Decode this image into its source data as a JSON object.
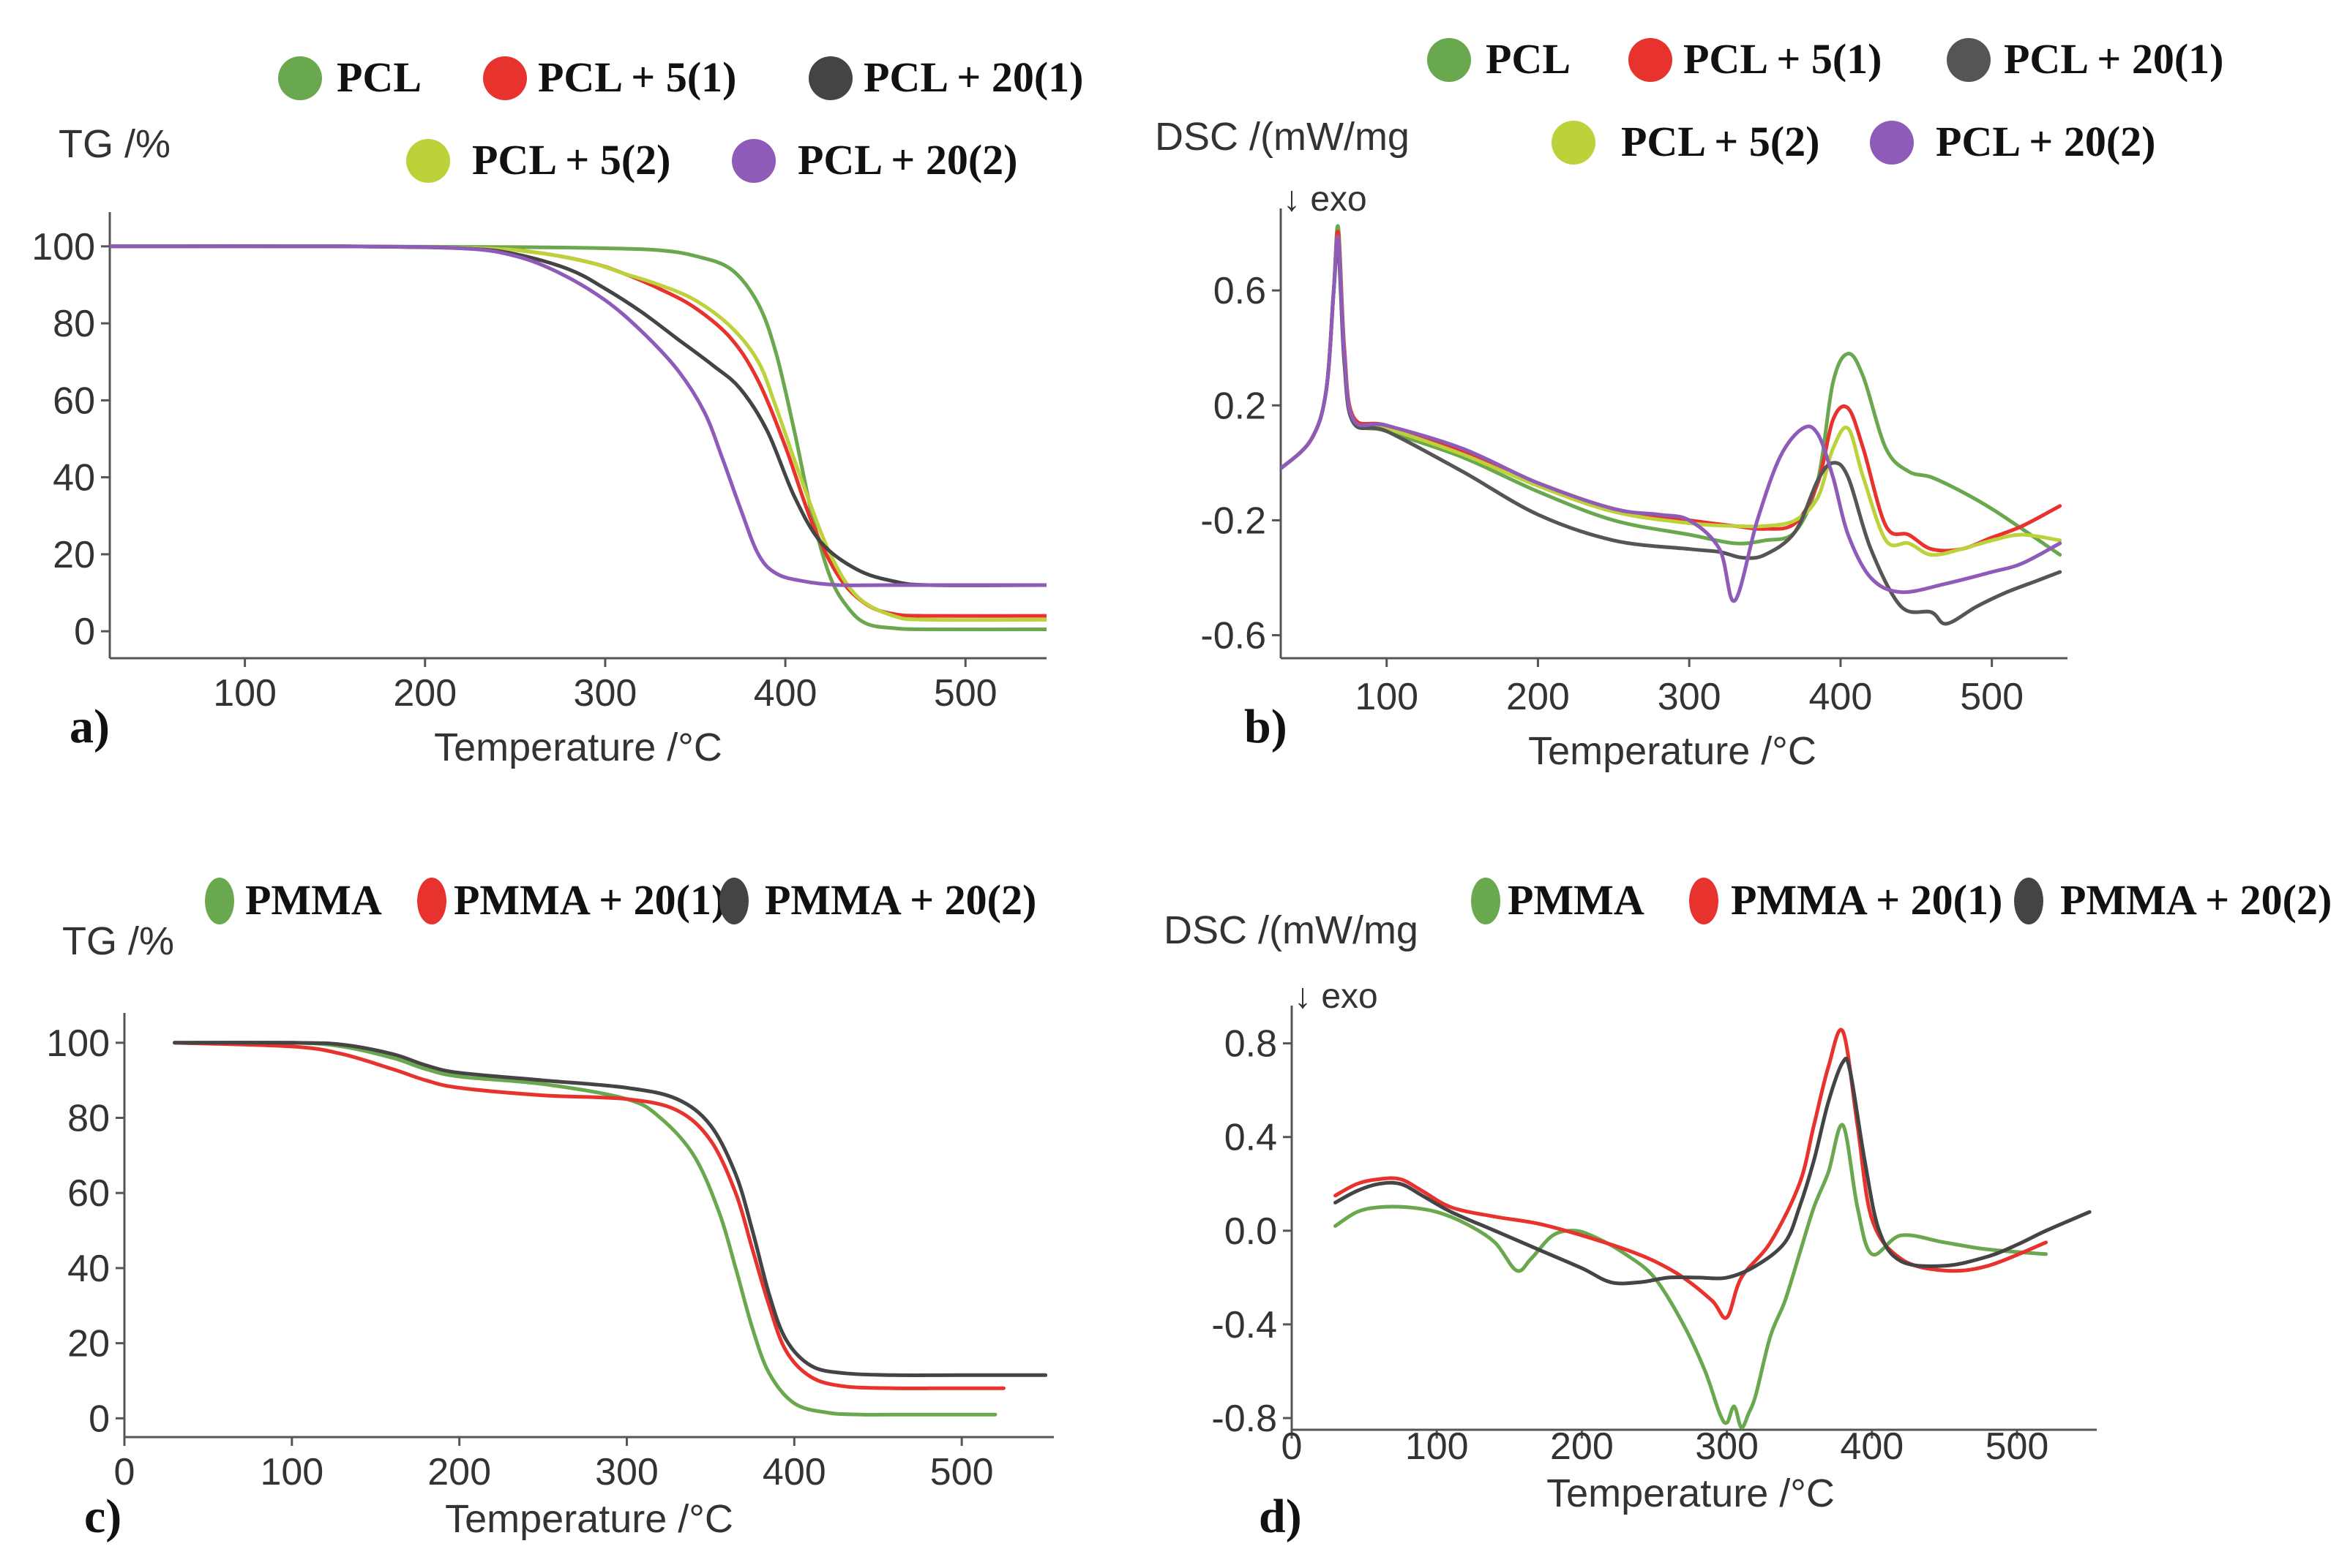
{
  "chart_data": [
    {
      "id": "a",
      "type": "line",
      "panel_label": "a)",
      "ylabel": "TG /%",
      "xlabel": "Temperature /°C",
      "xlim": [
        25,
        545
      ],
      "ylim": [
        -7,
        107
      ],
      "xticks": [
        100,
        200,
        300,
        400,
        500
      ],
      "yticks": [
        0,
        20,
        40,
        60,
        80,
        100
      ],
      "legend_rows": [
        [
          "PCL",
          "PCL + 5(1)",
          "PCL + 20(1)"
        ],
        [
          "PCL + 5(2)",
          "PCL + 20(2)"
        ]
      ],
      "series": [
        {
          "name": "PCL",
          "color": "#6aa84f",
          "x": [
            25,
            150,
            250,
            300,
            330,
            350,
            370,
            385,
            395,
            405,
            415,
            425,
            435,
            445,
            460,
            480,
            545
          ],
          "y": [
            100,
            100,
            99.8,
            99.5,
            99,
            97.5,
            94,
            85,
            72,
            52,
            30,
            14,
            6,
            2,
            0.8,
            0.5,
            0.5
          ]
        },
        {
          "name": "PCL + 5(1)",
          "color": "#e8322e",
          "x": [
            25,
            150,
            230,
            260,
            290,
            310,
            330,
            350,
            370,
            385,
            400,
            415,
            430,
            445,
            460,
            480,
            545
          ],
          "y": [
            100,
            100,
            99.5,
            98.5,
            96,
            93,
            89,
            84,
            76,
            65,
            48,
            28,
            14,
            7,
            4.5,
            4,
            4
          ]
        },
        {
          "name": "PCL + 5(2)",
          "color": "#bcd13a",
          "x": [
            25,
            150,
            230,
            260,
            290,
            310,
            330,
            350,
            370,
            385,
            395,
            410,
            425,
            440,
            460,
            480,
            545
          ],
          "y": [
            100,
            100,
            99.5,
            98.5,
            96,
            93,
            90,
            86,
            79,
            70,
            58,
            38,
            20,
            9,
            4,
            3,
            3
          ]
        },
        {
          "name": "PCL + 20(1)",
          "color": "#444444",
          "x": [
            25,
            150,
            220,
            250,
            280,
            300,
            320,
            340,
            360,
            375,
            390,
            405,
            420,
            440,
            460,
            480,
            545
          ],
          "y": [
            100,
            100,
            99.5,
            98,
            94,
            89,
            83,
            76,
            69,
            63,
            52,
            35,
            23,
            16,
            13,
            12,
            12
          ]
        },
        {
          "name": "PCL + 20(2)",
          "color": "#8e5bb8",
          "x": [
            25,
            150,
            220,
            250,
            275,
            300,
            320,
            340,
            355,
            365,
            375,
            385,
            395,
            410,
            430,
            460,
            545
          ],
          "y": [
            100,
            100,
            99.5,
            97.5,
            93,
            86,
            78,
            68,
            57,
            45,
            32,
            20,
            15,
            13,
            12,
            12,
            12
          ]
        }
      ]
    },
    {
      "id": "b",
      "type": "line",
      "panel_label": "b)",
      "ylabel": "DSC /(mW/mg",
      "annotation": "↓ exo",
      "xlabel": "Temperature /°C",
      "xlim": [
        30,
        550
      ],
      "ylim": [
        -0.68,
        0.86
      ],
      "xticks": [
        100,
        200,
        300,
        400,
        500
      ],
      "yticks": [
        0.6,
        0.2,
        -0.2,
        -0.6
      ],
      "ytick_labels": [
        "0.6",
        "0.2",
        "-0.2",
        "-0.6"
      ],
      "legend_rows": [
        [
          "PCL",
          "PCL + 5(1)",
          "PCL + 20(1)"
        ],
        [
          "PCL + 5(2)",
          "PCL + 20(2)"
        ]
      ],
      "series": [
        {
          "name": "PCL",
          "color": "#6aa84f",
          "x": [
            30,
            50,
            60,
            65,
            68,
            72,
            78,
            100,
            150,
            200,
            250,
            300,
            330,
            350,
            370,
            385,
            395,
            405,
            415,
            430,
            445,
            460,
            480,
            500,
            520,
            545
          ],
          "y": [
            -0.02,
            0.08,
            0.25,
            0.6,
            0.82,
            0.4,
            0.15,
            0.11,
            0.02,
            -0.1,
            -0.2,
            -0.25,
            -0.28,
            -0.27,
            -0.24,
            -0.06,
            0.28,
            0.38,
            0.3,
            0.05,
            -0.03,
            -0.05,
            -0.1,
            -0.16,
            -0.23,
            -0.32
          ]
        },
        {
          "name": "PCL + 5(1)",
          "color": "#e8322e",
          "x": [
            30,
            50,
            60,
            65,
            68,
            72,
            78,
            100,
            150,
            200,
            250,
            300,
            330,
            350,
            370,
            385,
            395,
            405,
            415,
            430,
            445,
            460,
            480,
            500,
            520,
            545
          ],
          "y": [
            -0.02,
            0.08,
            0.25,
            0.6,
            0.8,
            0.4,
            0.16,
            0.13,
            0.04,
            -0.07,
            -0.16,
            -0.2,
            -0.22,
            -0.23,
            -0.21,
            -0.07,
            0.15,
            0.19,
            0.05,
            -0.22,
            -0.25,
            -0.3,
            -0.3,
            -0.26,
            -0.22,
            -0.15
          ]
        },
        {
          "name": "PCL + 5(2)",
          "color": "#bcd13a",
          "x": [
            30,
            50,
            60,
            65,
            68,
            72,
            78,
            100,
            150,
            200,
            250,
            300,
            330,
            350,
            370,
            385,
            395,
            405,
            415,
            430,
            445,
            460,
            480,
            500,
            520,
            545
          ],
          "y": [
            -0.02,
            0.08,
            0.25,
            0.6,
            0.78,
            0.38,
            0.15,
            0.12,
            0.03,
            -0.08,
            -0.17,
            -0.21,
            -0.22,
            -0.22,
            -0.2,
            -0.12,
            0.05,
            0.12,
            -0.05,
            -0.27,
            -0.28,
            -0.32,
            -0.3,
            -0.27,
            -0.25,
            -0.27
          ]
        },
        {
          "name": "PCL + 20(1)",
          "color": "#555555",
          "x": [
            30,
            50,
            60,
            65,
            68,
            72,
            78,
            100,
            150,
            200,
            250,
            300,
            320,
            335,
            350,
            370,
            385,
            395,
            405,
            420,
            440,
            460,
            470,
            490,
            510,
            530,
            545
          ],
          "y": [
            -0.02,
            0.08,
            0.25,
            0.6,
            0.75,
            0.35,
            0.14,
            0.11,
            -0.03,
            -0.18,
            -0.27,
            -0.3,
            -0.31,
            -0.33,
            -0.32,
            -0.24,
            -0.06,
            0,
            -0.05,
            -0.3,
            -0.5,
            -0.52,
            -0.56,
            -0.5,
            -0.45,
            -0.41,
            -0.38
          ]
        },
        {
          "name": "PCL + 20(2)",
          "color": "#8e5bb8",
          "x": [
            30,
            50,
            60,
            65,
            68,
            72,
            78,
            100,
            150,
            200,
            250,
            280,
            300,
            320,
            330,
            345,
            360,
            375,
            385,
            395,
            405,
            420,
            440,
            470,
            500,
            520,
            545
          ],
          "y": [
            -0.02,
            0.08,
            0.25,
            0.6,
            0.78,
            0.38,
            0.15,
            0.13,
            0.05,
            -0.07,
            -0.16,
            -0.18,
            -0.2,
            -0.3,
            -0.48,
            -0.2,
            0.02,
            0.12,
            0.1,
            -0.05,
            -0.25,
            -0.4,
            -0.45,
            -0.42,
            -0.38,
            -0.35,
            -0.28
          ]
        }
      ]
    },
    {
      "id": "c",
      "type": "line",
      "panel_label": "c)",
      "ylabel": "TG /%",
      "xlabel": "Temperature /°C",
      "xlim": [
        0,
        555
      ],
      "ylim": [
        -5,
        106
      ],
      "xticks": [
        0,
        100,
        200,
        300,
        400,
        500
      ],
      "yticks": [
        0,
        20,
        40,
        60,
        80,
        100
      ],
      "legend_rows": [
        [
          "PMMA",
          "PMMA + 20(1)",
          "PMMA + 20(2)"
        ]
      ],
      "series": [
        {
          "name": "PMMA",
          "color": "#6aa84f",
          "x": [
            30,
            100,
            130,
            160,
            180,
            200,
            250,
            300,
            320,
            340,
            355,
            365,
            375,
            385,
            400,
            420,
            440,
            470,
            520
          ],
          "y": [
            100,
            100,
            99,
            96,
            93,
            91,
            89,
            85,
            80,
            70,
            55,
            40,
            24,
            12,
            4,
            1.5,
            1,
            1,
            1
          ]
        },
        {
          "name": "PMMA + 20(1)",
          "color": "#e8322e",
          "x": [
            30,
            100,
            130,
            160,
            180,
            200,
            250,
            300,
            330,
            350,
            365,
            375,
            385,
            395,
            410,
            430,
            460,
            490,
            525
          ],
          "y": [
            100,
            99,
            97,
            93,
            90,
            88,
            86,
            85,
            82,
            74,
            60,
            45,
            30,
            18,
            11,
            8.5,
            8,
            8,
            8
          ]
        },
        {
          "name": "PMMA + 20(2)",
          "color": "#444444",
          "x": [
            30,
            100,
            130,
            160,
            180,
            200,
            250,
            300,
            330,
            350,
            365,
            375,
            385,
            395,
            410,
            430,
            460,
            500,
            550
          ],
          "y": [
            100,
            100,
            99.5,
            97,
            94,
            92,
            90,
            88,
            85,
            78,
            65,
            50,
            33,
            21,
            14,
            12,
            11.5,
            11.5,
            11.5
          ]
        }
      ]
    },
    {
      "id": "d",
      "type": "line",
      "panel_label": "d)",
      "ylabel": "DSC /(mW/mg",
      "annotation": "↓ exo",
      "xlabel": "Temperature /°C",
      "xlim": [
        0,
        555
      ],
      "ylim": [
        -0.85,
        0.93
      ],
      "xticks": [
        0,
        100,
        200,
        300,
        400,
        500
      ],
      "yticks": [
        0.8,
        0.4,
        0.0,
        -0.4,
        -0.8
      ],
      "ytick_labels": [
        "0.8",
        "0.4",
        "0.0",
        "-0.4",
        "-0.8"
      ],
      "legend_rows": [
        [
          "PMMA",
          "PMMA + 20(1)",
          "PMMA + 20(2)"
        ]
      ],
      "series": [
        {
          "name": "PMMA",
          "color": "#6aa84f",
          "x": [
            30,
            45,
            60,
            80,
            100,
            120,
            140,
            155,
            165,
            180,
            195,
            210,
            230,
            250,
            270,
            285,
            295,
            300,
            305,
            310,
            315,
            320,
            330,
            340,
            350,
            360,
            370,
            380,
            390,
            400,
            420,
            450,
            480,
            520
          ],
          "y": [
            0.02,
            0.08,
            0.1,
            0.1,
            0.08,
            0.03,
            -0.05,
            -0.17,
            -0.12,
            -0.02,
            0,
            -0.03,
            -0.1,
            -0.2,
            -0.4,
            -0.6,
            -0.78,
            -0.82,
            -0.75,
            -0.84,
            -0.78,
            -0.7,
            -0.45,
            -0.3,
            -0.1,
            0.1,
            0.25,
            0.45,
            0.1,
            -0.1,
            -0.02,
            -0.05,
            -0.08,
            -0.1
          ]
        },
        {
          "name": "PMMA + 20(1)",
          "color": "#e8322e",
          "x": [
            30,
            45,
            60,
            75,
            90,
            110,
            140,
            170,
            200,
            230,
            250,
            270,
            290,
            300,
            310,
            330,
            350,
            360,
            370,
            380,
            390,
            400,
            420,
            450,
            480,
            520
          ],
          "y": [
            0.15,
            0.2,
            0.22,
            0.22,
            0.17,
            0.1,
            0.06,
            0.03,
            -0.02,
            -0.08,
            -0.13,
            -0.2,
            -0.3,
            -0.37,
            -0.2,
            -0.05,
            0.2,
            0.45,
            0.7,
            0.85,
            0.45,
            0.05,
            -0.12,
            -0.17,
            -0.15,
            -0.05
          ]
        },
        {
          "name": "PMMA + 20(2)",
          "color": "#444444",
          "x": [
            30,
            45,
            60,
            75,
            90,
            110,
            140,
            170,
            200,
            220,
            240,
            260,
            280,
            300,
            320,
            340,
            350,
            360,
            370,
            380,
            385,
            395,
            405,
            420,
            450,
            480,
            500,
            520,
            550
          ],
          "y": [
            0.12,
            0.17,
            0.2,
            0.2,
            0.15,
            0.08,
            0,
            -0.08,
            -0.16,
            -0.22,
            -0.22,
            -0.2,
            -0.2,
            -0.2,
            -0.15,
            -0.05,
            0.1,
            0.3,
            0.55,
            0.72,
            0.68,
            0.3,
            0,
            -0.13,
            -0.15,
            -0.11,
            -0.06,
            0,
            0.08
          ]
        }
      ]
    }
  ]
}
